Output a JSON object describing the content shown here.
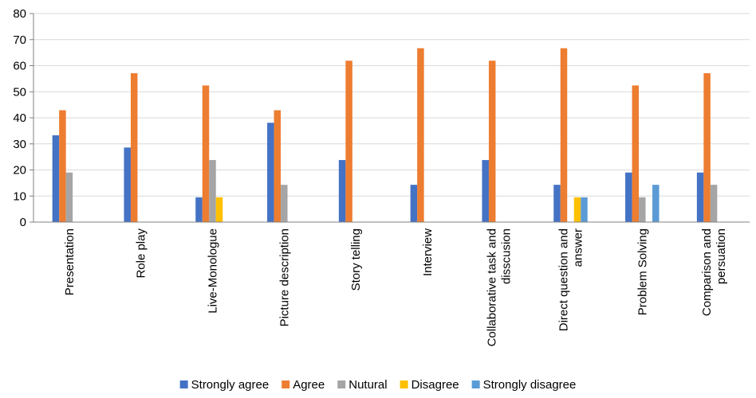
{
  "chart_data": {
    "type": "bar",
    "title": "",
    "xlabel": "",
    "ylabel": "",
    "ylim": [
      0,
      80
    ],
    "yticks": [
      0,
      10,
      20,
      30,
      40,
      50,
      60,
      70,
      80
    ],
    "grid": true,
    "legend_position": "bottom",
    "categories": [
      [
        "Presentation"
      ],
      [
        "Role play"
      ],
      [
        "Live-Monologue"
      ],
      [
        "Picture description"
      ],
      [
        "Story telling"
      ],
      [
        "Interview"
      ],
      [
        "Collaborative task and",
        "disscusion"
      ],
      [
        "Direct question and",
        "answer"
      ],
      [
        "Problem Solving"
      ],
      [
        "Comparison and",
        "persuation"
      ]
    ],
    "series": [
      {
        "name": "Strongly agree",
        "color": "#4472C4",
        "values": [
          33.3,
          28.6,
          9.5,
          38.1,
          23.8,
          14.3,
          23.8,
          14.3,
          19.0,
          19.0
        ]
      },
      {
        "name": "Agree",
        "color": "#ED7D31",
        "values": [
          42.9,
          57.1,
          52.4,
          42.9,
          61.9,
          66.7,
          61.9,
          66.7,
          52.4,
          57.1
        ]
      },
      {
        "name": "Nutural",
        "color": "#A5A5A5",
        "values": [
          19.0,
          0,
          23.8,
          14.3,
          0,
          0,
          0,
          0,
          9.5,
          14.3
        ]
      },
      {
        "name": "Disagree",
        "color": "#FFC000",
        "values": [
          0,
          0,
          9.5,
          0,
          0,
          0,
          0,
          9.5,
          0,
          0
        ]
      },
      {
        "name": "Strongly disagree",
        "color": "#5B9BD5",
        "values": [
          0,
          0,
          0,
          0,
          0,
          0,
          0,
          9.5,
          14.3,
          0
        ]
      }
    ]
  }
}
